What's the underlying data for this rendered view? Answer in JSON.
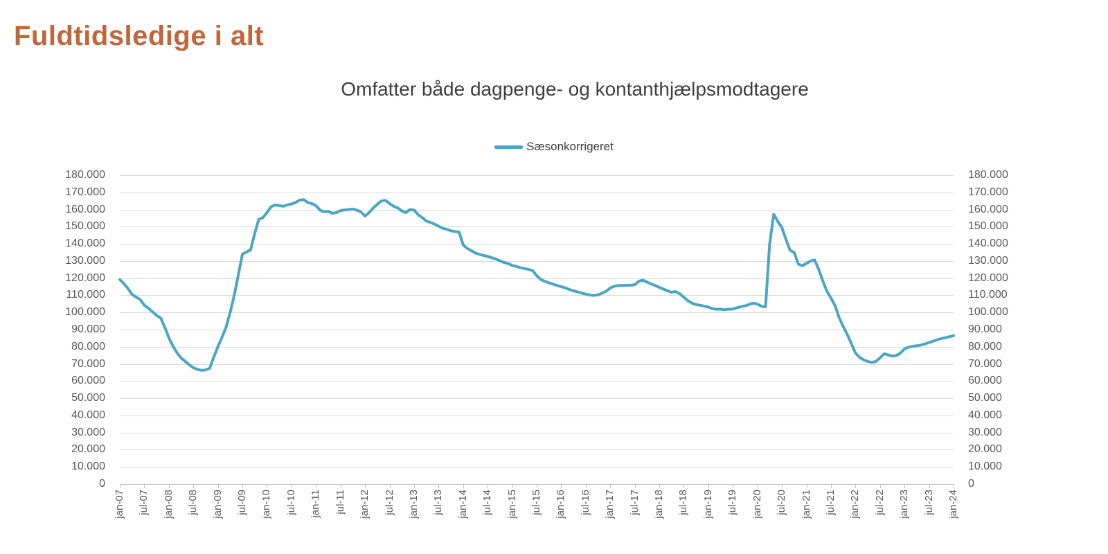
{
  "header": {
    "title": "Fuldtidsledige i alt",
    "title_color": "#C2663A"
  },
  "chart": {
    "subtitle": "Omfatter både dagpenge- og kontanthjælpsmodtagere",
    "legend": [
      {
        "label": "Sæsonkorrigeret",
        "color": "#4AA6C5",
        "marker": "line-swatch"
      }
    ]
  },
  "colors": {
    "gridline": "#D9D9D9",
    "axis_line": "#BFBFBF",
    "axis_text": "#595959",
    "subtitle_text": "#3F3F3F",
    "series_line": "#4AA6C5",
    "title_text": "#C2663A"
  },
  "chart_data": {
    "type": "line",
    "title": "Omfatter både dagpenge- og kontanthjælpsmodtagere",
    "legend_entries": [
      "Sæsonkorrigeret"
    ],
    "legend_position": "top-center",
    "grid": "horizontal",
    "ylim": [
      0,
      180000
    ],
    "y_tick_step": 10000,
    "y_tick_labels": [
      "180.000",
      "170.000",
      "160.000",
      "150.000",
      "140.000",
      "130.000",
      "120.000",
      "110.000",
      "100.000",
      "90.000",
      "80.000",
      "70.000",
      "60.000",
      "50.000",
      "40.000",
      "30.000",
      "20.000",
      "10.000",
      "0"
    ],
    "x_unit": "month",
    "x_start": "jan-07",
    "x_end": "jan-24",
    "x_tick_interval_months": 6,
    "x_tick_labels": [
      "jan-07",
      "jul-07",
      "jan-08",
      "jul-08",
      "jan-09",
      "jul-09",
      "jan-10",
      "jul-10",
      "jan-11",
      "jul-11",
      "jan-12",
      "jul-12",
      "jan-13",
      "jul-13",
      "jan-14",
      "jul-14",
      "jan-15",
      "jul-15",
      "jan-16",
      "jul-16",
      "jan-17",
      "jul-17",
      "jan-18",
      "jul-18",
      "jan-19",
      "jul-19",
      "jan-20",
      "jul-20",
      "jan-21",
      "jul-21",
      "jan-22",
      "jul-22",
      "jan-23",
      "jul-23",
      "jan-24"
    ],
    "series": [
      {
        "name": "Sæsonkorrigeret",
        "color": "#4AA6C5",
        "values": [
          119200,
          116800,
          114000,
          110500,
          109000,
          107500,
          104200,
          102500,
          100400,
          98300,
          96800,
          91500,
          85300,
          80500,
          76500,
          73500,
          71500,
          69500,
          67800,
          66800,
          66300,
          66500,
          67500,
          74000,
          80000,
          85500,
          91500,
          100000,
          110000,
          122000,
          134000,
          135300,
          136500,
          146000,
          154300,
          155200,
          158200,
          161600,
          162700,
          162300,
          161900,
          162700,
          163200,
          164100,
          165500,
          165800,
          164100,
          163400,
          162300,
          159600,
          158600,
          158900,
          157800,
          158200,
          159400,
          159800,
          160000,
          160300,
          159600,
          158600,
          156200,
          158200,
          160900,
          163000,
          165000,
          165300,
          163500,
          161900,
          160900,
          159200,
          158200,
          160000,
          159700,
          157000,
          155300,
          153300,
          152500,
          151500,
          150300,
          149000,
          148500,
          147600,
          147200,
          146900,
          139400,
          137300,
          136000,
          134600,
          133900,
          133200,
          132700,
          131900,
          131200,
          130100,
          129200,
          128500,
          127400,
          126900,
          126100,
          125600,
          125100,
          124400,
          121500,
          119200,
          118200,
          117300,
          116500,
          115700,
          115100,
          114300,
          113400,
          112600,
          112000,
          111300,
          110700,
          110200,
          109900,
          110300,
          111200,
          112400,
          114200,
          115300,
          115700,
          115800,
          115800,
          115900,
          116100,
          118200,
          118900,
          117700,
          116600,
          115700,
          114600,
          113600,
          112600,
          111800,
          112200,
          110900,
          108900,
          106800,
          105400,
          104600,
          104200,
          103700,
          103100,
          102200,
          101900,
          101900,
          101600,
          101900,
          102000,
          102800,
          103400,
          103900,
          104700,
          105400,
          104900,
          103600,
          103300,
          140000,
          157200,
          153000,
          149500,
          142500,
          136200,
          135000,
          128300,
          127200,
          128600,
          130000,
          130600,
          125200,
          118500,
          112500,
          108500,
          104000,
          97000,
          91800,
          87200,
          81800,
          76300,
          73800,
          72400,
          71400,
          70900,
          71500,
          73500,
          75900,
          75300,
          74600,
          74900,
          76300,
          78800,
          79800,
          80300,
          80600,
          81000,
          81700,
          82500,
          83300,
          84100,
          84800,
          85300,
          85900,
          86500
        ]
      }
    ]
  }
}
